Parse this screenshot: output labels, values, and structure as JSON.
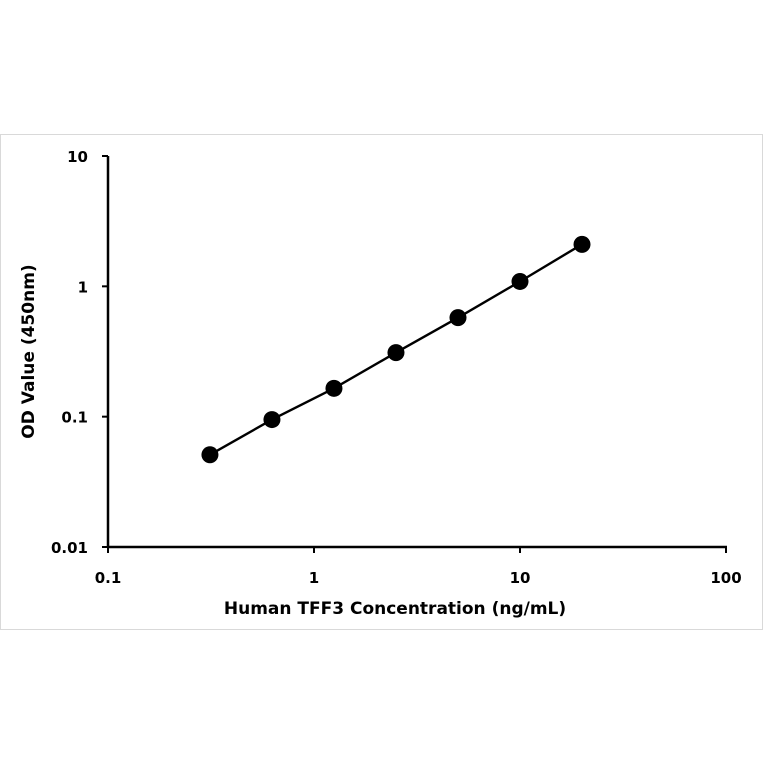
{
  "chart_data": {
    "type": "line",
    "title": "",
    "xlabel": "Human TFF3 Concentration (ng/mL)",
    "ylabel": "OD Value (450nm)",
    "x_scale": "log",
    "y_scale": "log",
    "xlim": [
      0.1,
      100
    ],
    "ylim": [
      0.01,
      10
    ],
    "x_ticks": [
      0.1,
      1,
      10,
      100
    ],
    "x_tick_labels": [
      "0.1",
      "1",
      "10",
      "100"
    ],
    "y_ticks": [
      0.01,
      0.1,
      1,
      10
    ],
    "y_tick_labels": [
      "0.01",
      "0.1",
      "1",
      "10"
    ],
    "grid": false,
    "legend": "none",
    "series": [
      {
        "x": [
          0.3125,
          0.625,
          1.25,
          2.5,
          5,
          10,
          20
        ],
        "y": [
          0.051,
          0.095,
          0.165,
          0.31,
          0.575,
          1.09,
          2.1
        ],
        "color": "#000000",
        "marker": "circle"
      }
    ]
  }
}
